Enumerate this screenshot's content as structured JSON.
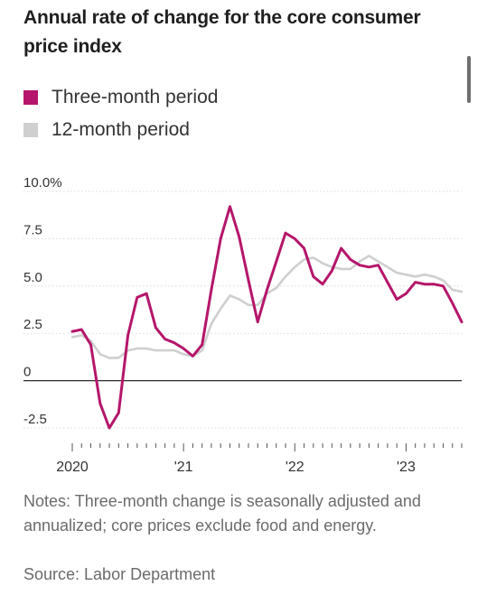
{
  "title": "Annual rate of change for the core consumer price index",
  "legend": [
    {
      "label": "Three-month period",
      "color": "#b5166b"
    },
    {
      "label": "12-month period",
      "color": "#cfcfcf"
    }
  ],
  "chart_data": {
    "type": "line",
    "x_start": "2020-01",
    "x_end": "2023-07",
    "ylim": [
      -2.5,
      10.0
    ],
    "y_ticks": [
      -2.5,
      0,
      2.5,
      5.0,
      7.5,
      10.0
    ],
    "y_tick_labels": [
      "-2.5",
      "0",
      "2.5",
      "5.0",
      "7.5",
      "10.0%"
    ],
    "x_tick_labels": [
      {
        "label": "2020",
        "date": "2020-01"
      },
      {
        "label": "'21",
        "date": "2021-01"
      },
      {
        "label": "'22",
        "date": "2022-01"
      },
      {
        "label": "'23",
        "date": "2023-01"
      }
    ],
    "series": [
      {
        "name": "12-month period",
        "color": "#cfcfcf",
        "points": [
          [
            "2020-01",
            2.3
          ],
          [
            "2020-02",
            2.4
          ],
          [
            "2020-03",
            2.1
          ],
          [
            "2020-04",
            1.4
          ],
          [
            "2020-05",
            1.2
          ],
          [
            "2020-06",
            1.2
          ],
          [
            "2020-07",
            1.6
          ],
          [
            "2020-08",
            1.7
          ],
          [
            "2020-09",
            1.7
          ],
          [
            "2020-10",
            1.6
          ],
          [
            "2020-11",
            1.6
          ],
          [
            "2020-12",
            1.6
          ],
          [
            "2021-01",
            1.4
          ],
          [
            "2021-02",
            1.3
          ],
          [
            "2021-03",
            1.6
          ],
          [
            "2021-04",
            3.0
          ],
          [
            "2021-05",
            3.8
          ],
          [
            "2021-06",
            4.5
          ],
          [
            "2021-07",
            4.3
          ],
          [
            "2021-08",
            4.0
          ],
          [
            "2021-09",
            4.0
          ],
          [
            "2021-10",
            4.6
          ],
          [
            "2021-11",
            4.9
          ],
          [
            "2021-12",
            5.5
          ],
          [
            "2022-01",
            6.0
          ],
          [
            "2022-02",
            6.4
          ],
          [
            "2022-03",
            6.5
          ],
          [
            "2022-04",
            6.2
          ],
          [
            "2022-05",
            6.0
          ],
          [
            "2022-06",
            5.9
          ],
          [
            "2022-07",
            5.9
          ],
          [
            "2022-08",
            6.3
          ],
          [
            "2022-09",
            6.6
          ],
          [
            "2022-10",
            6.3
          ],
          [
            "2022-11",
            6.0
          ],
          [
            "2022-12",
            5.7
          ],
          [
            "2023-01",
            5.6
          ],
          [
            "2023-02",
            5.5
          ],
          [
            "2023-03",
            5.6
          ],
          [
            "2023-04",
            5.5
          ],
          [
            "2023-05",
            5.3
          ],
          [
            "2023-06",
            4.8
          ],
          [
            "2023-07",
            4.7
          ]
        ]
      },
      {
        "name": "Three-month period",
        "color": "#b5166b",
        "points": [
          [
            "2020-01",
            2.6
          ],
          [
            "2020-02",
            2.7
          ],
          [
            "2020-03",
            1.9
          ],
          [
            "2020-04",
            -1.2
          ],
          [
            "2020-05",
            -2.5
          ],
          [
            "2020-06",
            -1.7
          ],
          [
            "2020-07",
            2.4
          ],
          [
            "2020-08",
            4.4
          ],
          [
            "2020-09",
            4.6
          ],
          [
            "2020-10",
            2.8
          ],
          [
            "2020-11",
            2.2
          ],
          [
            "2020-12",
            2.0
          ],
          [
            "2021-01",
            1.7
          ],
          [
            "2021-02",
            1.3
          ],
          [
            "2021-03",
            1.9
          ],
          [
            "2021-04",
            4.8
          ],
          [
            "2021-05",
            7.5
          ],
          [
            "2021-06",
            9.2
          ],
          [
            "2021-07",
            7.6
          ],
          [
            "2021-08",
            5.3
          ],
          [
            "2021-09",
            3.1
          ],
          [
            "2021-10",
            4.8
          ],
          [
            "2021-11",
            6.3
          ],
          [
            "2021-12",
            7.8
          ],
          [
            "2022-01",
            7.5
          ],
          [
            "2022-02",
            7.0
          ],
          [
            "2022-03",
            5.5
          ],
          [
            "2022-04",
            5.1
          ],
          [
            "2022-05",
            5.8
          ],
          [
            "2022-06",
            7.0
          ],
          [
            "2022-07",
            6.4
          ],
          [
            "2022-08",
            6.1
          ],
          [
            "2022-09",
            6.0
          ],
          [
            "2022-10",
            6.1
          ],
          [
            "2022-11",
            5.2
          ],
          [
            "2022-12",
            4.3
          ],
          [
            "2023-01",
            4.6
          ],
          [
            "2023-02",
            5.2
          ],
          [
            "2023-03",
            5.1
          ],
          [
            "2023-04",
            5.1
          ],
          [
            "2023-05",
            5.0
          ],
          [
            "2023-06",
            4.1
          ],
          [
            "2023-07",
            3.1
          ]
        ]
      }
    ],
    "grid": true
  },
  "notes": "Notes: Three-month change is seasonally adjusted and annualized; core prices exclude food and energy.",
  "source": "Source: Labor Department"
}
